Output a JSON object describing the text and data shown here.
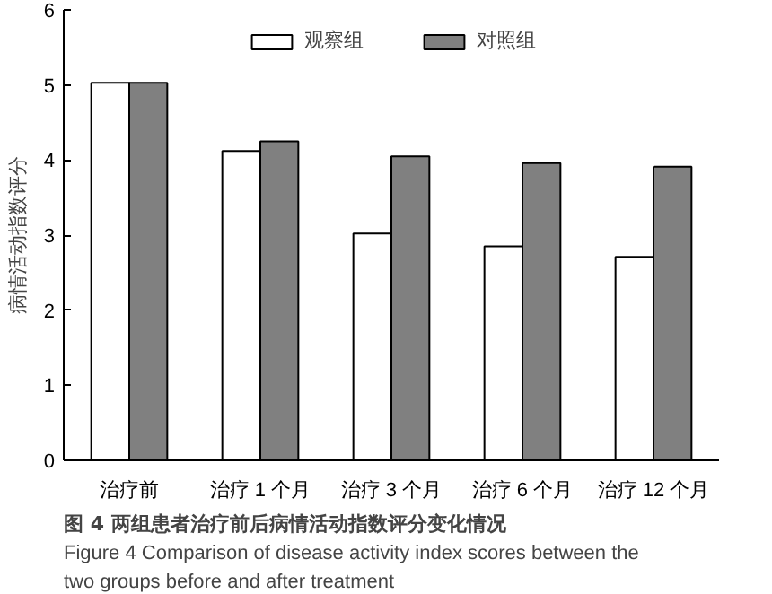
{
  "chart_data": {
    "type": "bar",
    "ylabel": "病情活动指数评分",
    "categories": [
      "治疗前",
      "治疗 1 个月",
      "治疗 3 个月",
      "治疗 6 个月",
      "治疗 12 个月"
    ],
    "series": [
      {
        "name": "观察组",
        "color": "#ffffff",
        "values": [
          5.03,
          4.12,
          3.02,
          2.85,
          2.71
        ]
      },
      {
        "name": "对照组",
        "color": "#808080",
        "values": [
          5.03,
          4.25,
          4.05,
          3.96,
          3.91
        ]
      }
    ],
    "ylim": [
      0,
      6
    ],
    "yticks": [
      0,
      1,
      2,
      3,
      4,
      5,
      6
    ],
    "grid": false,
    "legend": "top",
    "annotations": [
      "图 4    两组患者治疗前后病情活动指数评分变化情况",
      "Figure 4    Comparison of disease activity index scores between the two groups before and after treatment"
    ]
  }
}
